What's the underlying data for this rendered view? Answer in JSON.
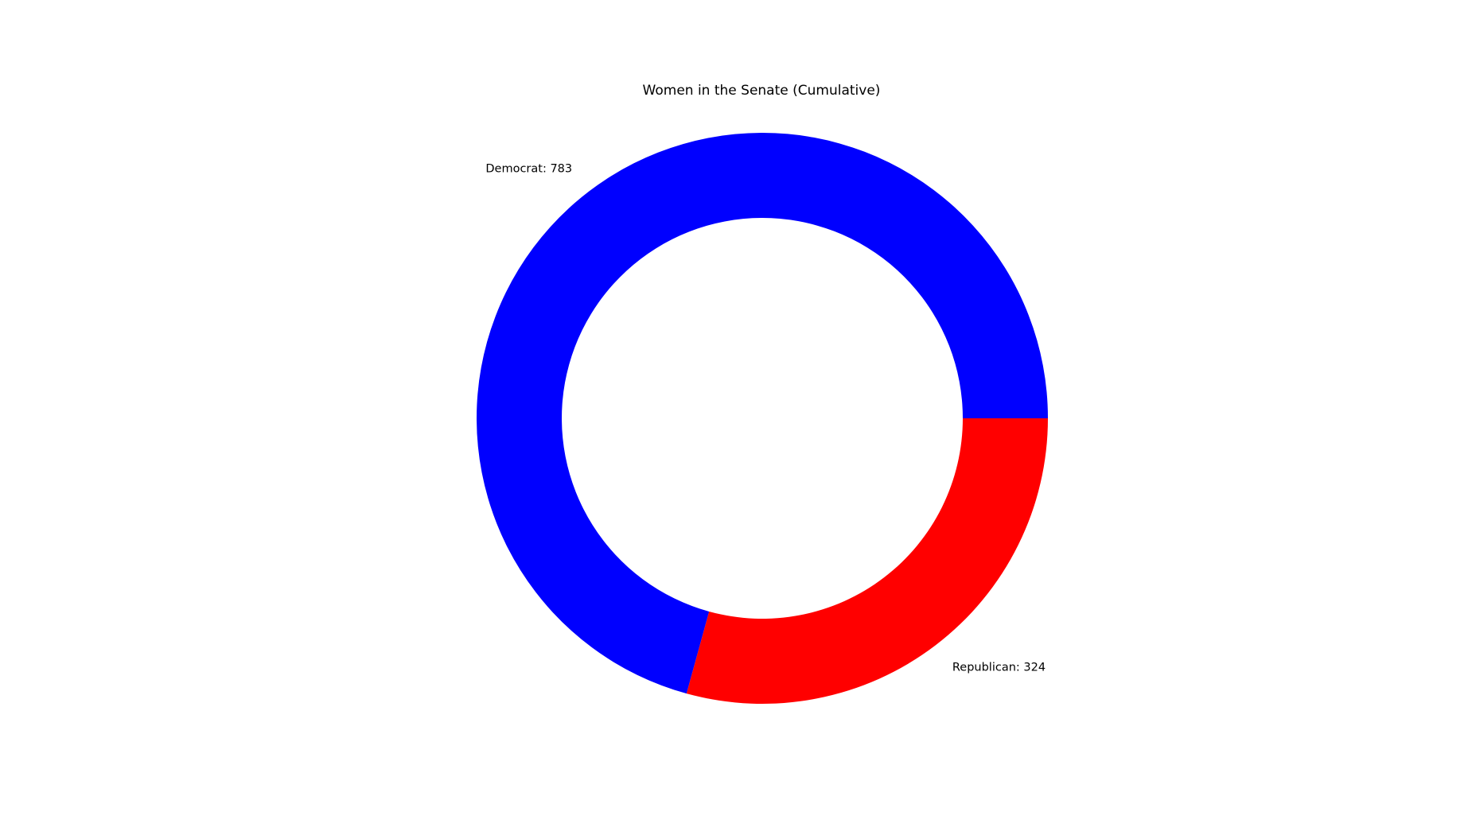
{
  "chart_data": {
    "type": "pie",
    "variant": "donut",
    "title": "Women in the Senate (Cumulative)",
    "slices": [
      {
        "label": "Democrat",
        "value": 783,
        "display": "Democrat: 783",
        "color": "#0000ff"
      },
      {
        "label": "Republican",
        "value": 324,
        "display": "Republican: 324",
        "color": "#ff0000"
      }
    ],
    "start_angle_deg": 0,
    "direction": "counterclockwise",
    "xlabel": "",
    "ylabel": ""
  }
}
